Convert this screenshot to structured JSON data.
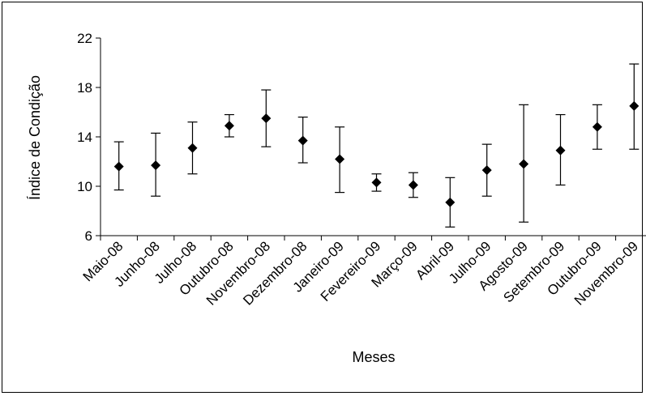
{
  "chart_data": {
    "type": "scatter",
    "title": "",
    "xlabel": "Meses",
    "ylabel": "Índice de Condição",
    "ylim": [
      6,
      22
    ],
    "yticks": [
      6,
      10,
      14,
      18,
      22
    ],
    "grid": false,
    "legend": "none",
    "marker": "diamond",
    "color": "#000000",
    "categories": [
      "Maio-08",
      "Junho-08",
      "Julho-08",
      "Outubro-08",
      "Novembro-08",
      "Dezembro-08",
      "Janeiro-09",
      "Fevereiro-09",
      "Março-09",
      "Abril-09",
      "Julho-09",
      "Agosto-09",
      "Setembro-09",
      "Outubro-09",
      "Novembro-09"
    ],
    "series": [
      {
        "values": [
          11.6,
          11.7,
          13.1,
          14.9,
          15.5,
          13.7,
          12.2,
          10.3,
          10.1,
          8.7,
          11.3,
          11.8,
          12.9,
          14.8,
          16.5
        ],
        "error_low": [
          9.7,
          9.2,
          11.0,
          14.0,
          13.2,
          11.9,
          9.5,
          9.6,
          9.1,
          6.7,
          9.2,
          7.1,
          10.1,
          13.0,
          13.0
        ],
        "error_high": [
          13.6,
          14.3,
          15.2,
          15.8,
          17.8,
          15.6,
          14.8,
          11.0,
          11.1,
          10.7,
          13.4,
          16.6,
          15.8,
          16.6,
          19.9
        ]
      }
    ]
  }
}
